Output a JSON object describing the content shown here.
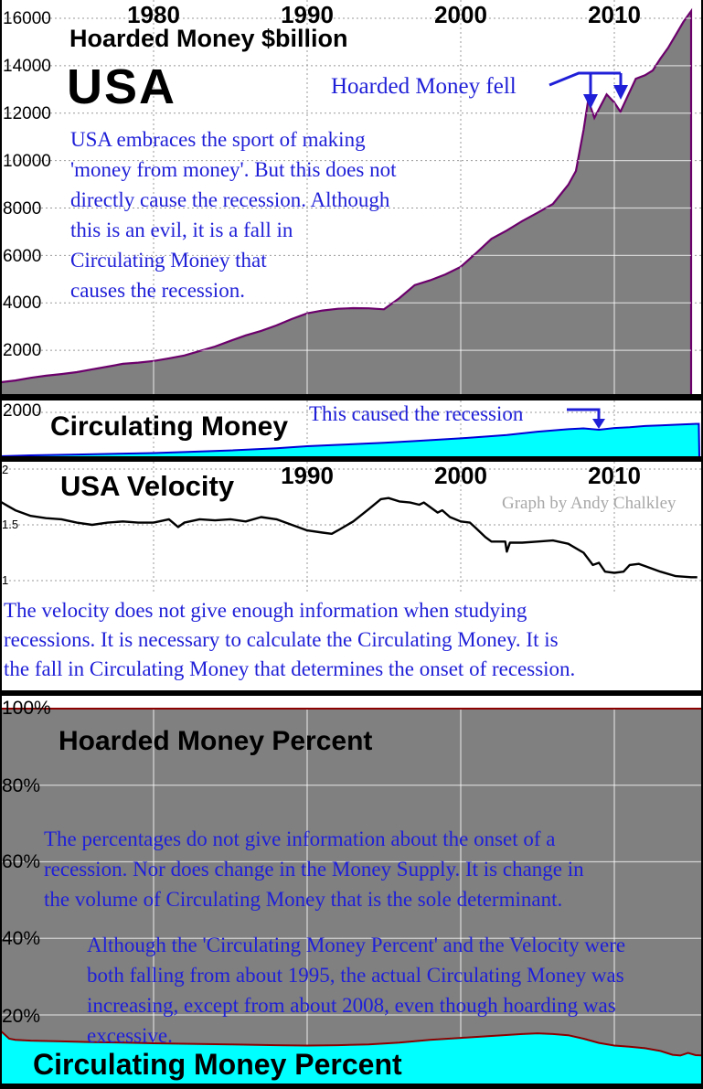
{
  "colors": {
    "hoarded_fill": "#808080",
    "hoarded_outline": "#6B006B",
    "circulating_fill": "#00FFFF",
    "circulating_outline": "#0000D5",
    "percent_boundary_red": "#8B0000",
    "annotation_blue": "#1F1FD8",
    "velocity_line": "#000000",
    "watermark_gray": "#A8A8A8"
  },
  "panels": {
    "hoarded": {
      "title": "Hoarded Money $billion",
      "country": "USA",
      "x_labels": [
        "1980",
        "1990",
        "2000",
        "2010"
      ],
      "y_labels": [
        "16000",
        "14000",
        "12000",
        "10000",
        "8000",
        "6000",
        "4000",
        "2000"
      ],
      "note_lines": [
        "USA embraces the sport of making",
        "'money from money'. But this does not",
        "directly cause the recession. Although",
        "this is an evil, it is a fall in",
        "Circulating Money that",
        "causes the recession."
      ],
      "annotation": "Hoarded Money fell"
    },
    "circulating": {
      "y_label": "2000",
      "title": "Circulating Money",
      "annotation": "This caused the recession"
    },
    "velocity": {
      "title": "USA Velocity",
      "credit": "Graph by Andy Chalkley",
      "x_labels": [
        "1990",
        "2000",
        "2010"
      ],
      "y_labels": [
        "2",
        "1.5",
        "1"
      ],
      "note_lines": [
        "The velocity does not give enough information when studying",
        "recessions. It is necessary to calculate the Circulating Money. It is",
        "the fall in Circulating Money that determines the onset of recession."
      ]
    },
    "percent": {
      "hoarded_title": "Hoarded Money Percent",
      "circulating_title": "Circulating Money Percent",
      "y_labels": [
        "100%",
        "80%",
        "60%",
        "40%",
        "20%"
      ],
      "note1_lines": [
        "The percentages do not give information about the onset of a",
        "recession. Nor does change in the Money Supply. It is change in",
        "the volume of Circulating Money that is the sole determinant."
      ],
      "note2_lines": [
        "Although the 'Circulating Money Percent' and the Velocity were",
        "both falling from about 1995, the actual Circulating Money was",
        "increasing, except from about 2008, even though hoarding was",
        "excessive."
      ]
    }
  },
  "chart_data": [
    {
      "id": "hoarded_money",
      "type": "area",
      "title": "Hoarded Money $billion",
      "region": "USA",
      "ylabel": "US$ billion",
      "x_range": [
        1970,
        2015.9
      ],
      "y_range": [
        0,
        16000
      ],
      "x_ticks": [
        1980,
        1990,
        2000,
        2010
      ],
      "y_ticks": [
        2000,
        4000,
        6000,
        8000,
        10000,
        12000,
        14000,
        16000
      ],
      "annotations": [
        "Hoarded Money fell (two dips near 2008-2010)"
      ],
      "points": [
        [
          1970,
          650
        ],
        [
          1971,
          730
        ],
        [
          1972,
          840
        ],
        [
          1973,
          930
        ],
        [
          1974,
          1000
        ],
        [
          1975,
          1080
        ],
        [
          1976,
          1200
        ],
        [
          1977,
          1310
        ],
        [
          1978,
          1430
        ],
        [
          1979,
          1480
        ],
        [
          1980,
          1550
        ],
        [
          1981,
          1660
        ],
        [
          1982,
          1780
        ],
        [
          1983,
          1970
        ],
        [
          1984,
          2160
        ],
        [
          1985,
          2400
        ],
        [
          1986,
          2630
        ],
        [
          1987,
          2820
        ],
        [
          1988,
          3050
        ],
        [
          1989,
          3320
        ],
        [
          1990,
          3560
        ],
        [
          1991,
          3680
        ],
        [
          1992,
          3750
        ],
        [
          1993,
          3780
        ],
        [
          1994,
          3770
        ],
        [
          1995,
          3730
        ],
        [
          1996,
          4200
        ],
        [
          1997,
          4750
        ],
        [
          1998,
          4950
        ],
        [
          1999,
          5200
        ],
        [
          2000,
          5520
        ],
        [
          2001,
          6100
        ],
        [
          2002,
          6700
        ],
        [
          2003,
          7050
        ],
        [
          2004,
          7450
        ],
        [
          2005,
          7800
        ],
        [
          2006,
          8170
        ],
        [
          2007,
          8980
        ],
        [
          2007.5,
          9560
        ],
        [
          2008,
          11300
        ],
        [
          2008.3,
          12550
        ],
        [
          2008.7,
          11800
        ],
        [
          2009.1,
          12300
        ],
        [
          2009.5,
          12790
        ],
        [
          2010,
          12450
        ],
        [
          2010.4,
          12060
        ],
        [
          2011,
          12900
        ],
        [
          2011.4,
          13450
        ],
        [
          2012,
          13600
        ],
        [
          2012.5,
          13800
        ],
        [
          2013,
          14300
        ],
        [
          2013.5,
          14750
        ],
        [
          2014,
          15300
        ],
        [
          2014.5,
          15850
        ],
        [
          2015,
          16300
        ]
      ]
    },
    {
      "id": "circulating_money",
      "type": "area",
      "title": "Circulating Money",
      "annotation": "This caused the recession (dip at 2009)",
      "x_range": [
        1970,
        2015.6
      ],
      "y_range": [
        0,
        2500
      ],
      "y_ticks": [
        2000
      ],
      "points": [
        [
          1970,
          40
        ],
        [
          1972,
          80
        ],
        [
          1975,
          120
        ],
        [
          1978,
          160
        ],
        [
          1980,
          185
        ],
        [
          1982,
          230
        ],
        [
          1985,
          300
        ],
        [
          1988,
          400
        ],
        [
          1990,
          490
        ],
        [
          1992,
          550
        ],
        [
          1995,
          640
        ],
        [
          1997,
          720
        ],
        [
          2000,
          840
        ],
        [
          2002,
          940
        ],
        [
          2003,
          990
        ],
        [
          2005,
          1140
        ],
        [
          2007,
          1250
        ],
        [
          2008,
          1285
        ],
        [
          2009,
          1225
        ],
        [
          2010,
          1300
        ],
        [
          2011,
          1340
        ],
        [
          2012,
          1390
        ],
        [
          2013,
          1420
        ],
        [
          2014,
          1450
        ],
        [
          2015.5,
          1490
        ]
      ]
    },
    {
      "id": "usa_velocity",
      "type": "line",
      "title": "USA Velocity",
      "credit": "Graph by Andy Chalkley",
      "x_range": [
        1970,
        2015.9
      ],
      "y_range": [
        0.88,
        2.06
      ],
      "x_ticks": [
        1990,
        2000,
        2010
      ],
      "y_ticks": [
        1,
        1.5,
        2
      ],
      "points": [
        [
          1970,
          1.71
        ],
        [
          1970.5,
          1.67
        ],
        [
          1971,
          1.63
        ],
        [
          1972,
          1.58
        ],
        [
          1973,
          1.56
        ],
        [
          1974,
          1.55
        ],
        [
          1975,
          1.52
        ],
        [
          1976,
          1.5
        ],
        [
          1977,
          1.52
        ],
        [
          1978,
          1.53
        ],
        [
          1979,
          1.52
        ],
        [
          1980,
          1.52
        ],
        [
          1981,
          1.55
        ],
        [
          1981.6,
          1.48
        ],
        [
          1982,
          1.52
        ],
        [
          1983,
          1.55
        ],
        [
          1984,
          1.54
        ],
        [
          1985,
          1.55
        ],
        [
          1986,
          1.53
        ],
        [
          1987,
          1.57
        ],
        [
          1988,
          1.55
        ],
        [
          1989,
          1.5
        ],
        [
          1990,
          1.45
        ],
        [
          1991,
          1.43
        ],
        [
          1991.6,
          1.42
        ],
        [
          1992,
          1.45
        ],
        [
          1993,
          1.53
        ],
        [
          1994,
          1.64
        ],
        [
          1994.8,
          1.73
        ],
        [
          1995.3,
          1.74
        ],
        [
          1996,
          1.71
        ],
        [
          1996.7,
          1.7
        ],
        [
          1997.3,
          1.68
        ],
        [
          1997.6,
          1.7
        ],
        [
          1998,
          1.66
        ],
        [
          1998.5,
          1.61
        ],
        [
          1998.8,
          1.63
        ],
        [
          1999.3,
          1.57
        ],
        [
          2000,
          1.53
        ],
        [
          2000.6,
          1.52
        ],
        [
          2001,
          1.47
        ],
        [
          2001.6,
          1.39
        ],
        [
          2002,
          1.35
        ],
        [
          2002.9,
          1.35
        ],
        [
          2003,
          1.26
        ],
        [
          2003.2,
          1.34
        ],
        [
          2004,
          1.34
        ],
        [
          2005,
          1.35
        ],
        [
          2006,
          1.36
        ],
        [
          2007,
          1.33
        ],
        [
          2008,
          1.25
        ],
        [
          2008.6,
          1.14
        ],
        [
          2009,
          1.16
        ],
        [
          2009.4,
          1.08
        ],
        [
          2010,
          1.07
        ],
        [
          2010.6,
          1.08
        ],
        [
          2011,
          1.14
        ],
        [
          2011.6,
          1.15
        ],
        [
          2012,
          1.13
        ],
        [
          2013,
          1.08
        ],
        [
          2014,
          1.04
        ],
        [
          2015,
          1.03
        ],
        [
          2015.4,
          1.03
        ]
      ]
    },
    {
      "id": "money_percent",
      "type": "area",
      "title": "Hoarded Money Percent / Circulating Money Percent",
      "stacked_to": 100,
      "x_range": [
        1970,
        2015.9
      ],
      "y_range": [
        0,
        100
      ],
      "y_ticks": [
        20,
        40,
        60,
        80,
        100
      ],
      "series": [
        {
          "name": "Circulating Money Percent",
          "points": [
            [
              1970,
              16.0
            ],
            [
              1970.6,
              13.8
            ],
            [
              1971,
              13.5
            ],
            [
              1972,
              13.3
            ],
            [
              1974,
              13.1
            ],
            [
              1976,
              12.9
            ],
            [
              1978,
              12.8
            ],
            [
              1980,
              12.6
            ],
            [
              1983,
              12.4
            ],
            [
              1985,
              12.3
            ],
            [
              1988,
              12.1
            ],
            [
              1990,
              12.0
            ],
            [
              1992,
              12.1
            ],
            [
              1994,
              12.3
            ],
            [
              1996,
              12.8
            ],
            [
              1998,
              13.5
            ],
            [
              2000,
              14.0
            ],
            [
              2002,
              14.5
            ],
            [
              2004,
              15.0
            ],
            [
              2005,
              15.2
            ],
            [
              2006,
              15.0
            ],
            [
              2007,
              14.7
            ],
            [
              2008,
              13.8
            ],
            [
              2009,
              12.7
            ],
            [
              2010,
              12.0
            ],
            [
              2011,
              11.7
            ],
            [
              2012,
              11.3
            ],
            [
              2013,
              10.6
            ],
            [
              2013.8,
              9.6
            ],
            [
              2014.3,
              9.4
            ],
            [
              2014.8,
              10.1
            ],
            [
              2015.3,
              9.5
            ],
            [
              2015.9,
              9.4
            ]
          ]
        },
        {
          "name": "Hoarded Money Percent",
          "note": "remainder up to 100% (gray region above the cyan area)"
        }
      ]
    }
  ]
}
